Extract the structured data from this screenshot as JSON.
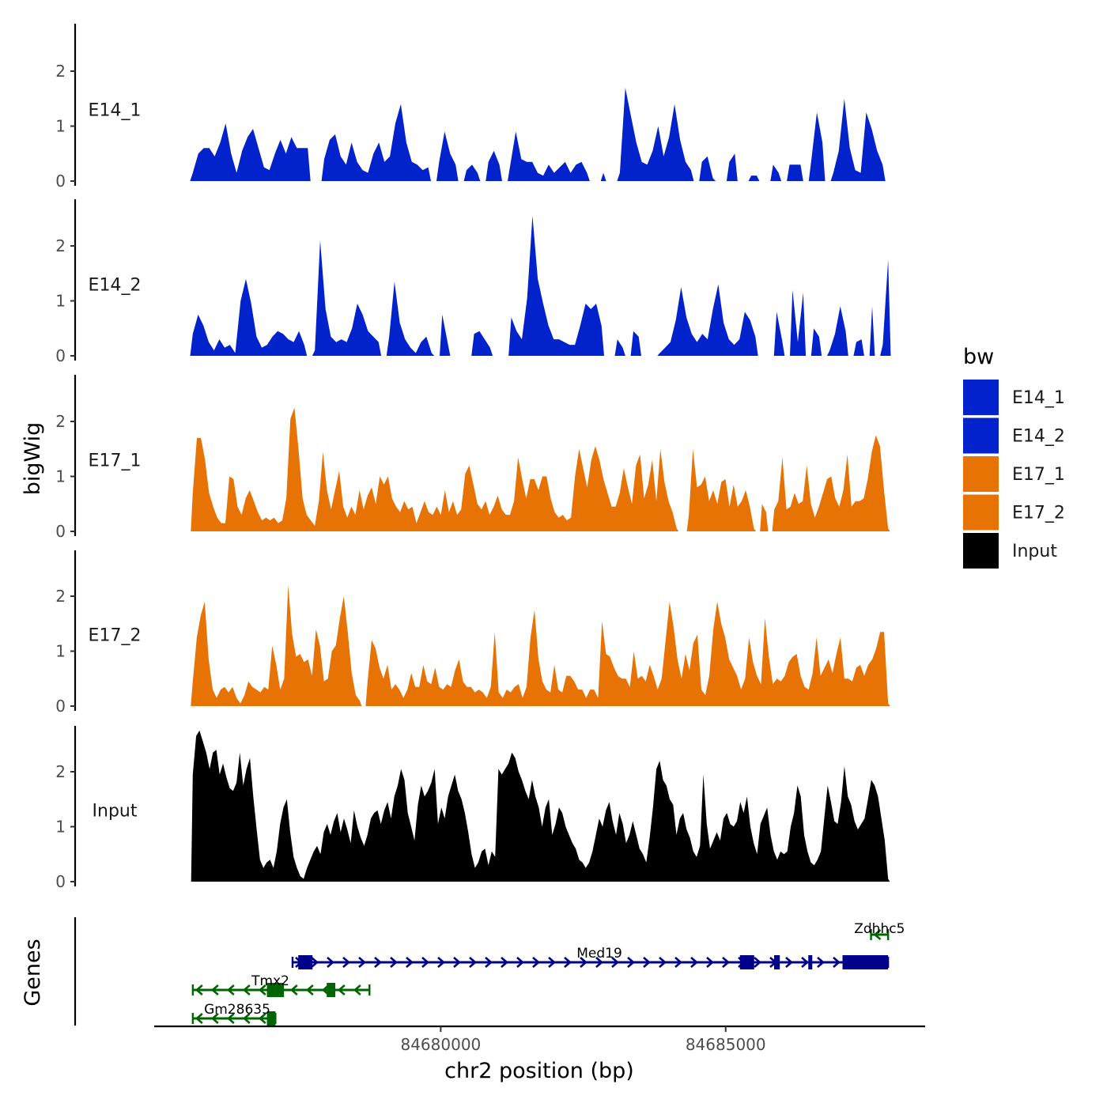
{
  "chart_data": {
    "type": "area",
    "chromosome": "chr2",
    "xlim": [
      84675000,
      84688500
    ],
    "x_range_data": [
      84675650,
      84687850
    ],
    "xticks": [
      84680000,
      84685000
    ],
    "xtick_labels": [
      "84680000",
      "84685000"
    ],
    "xlabel": "chr2 position (bp)",
    "ylabel": "bigWig",
    "ylim": [
      0,
      2.8
    ],
    "yticks": [
      0,
      1,
      2
    ],
    "ytick_labels": [
      "0",
      "1",
      "2"
    ],
    "genes_axis_label": "Genes",
    "legend": {
      "title": "bw",
      "entries": [
        {
          "label": "E14_1",
          "color": "#0222CC"
        },
        {
          "label": "E14_2",
          "color": "#0222CC"
        },
        {
          "label": "E17_1",
          "color": "#E87305"
        },
        {
          "label": "E17_2",
          "color": "#E87305"
        },
        {
          "label": "Input",
          "color": "#000000"
        }
      ]
    },
    "series": [
      {
        "name": "E14_1",
        "color": "#0222CC",
        "values": [
          0.15,
          0.5,
          0.6,
          0.6,
          0.45,
          0.7,
          1.05,
          0.5,
          0.15,
          0.55,
          0.8,
          0.95,
          0.6,
          0.25,
          0.2,
          0.5,
          0.75,
          0.5,
          0.8,
          0.6,
          0.6,
          0.6,
          0,
          0,
          0.4,
          0.75,
          0.85,
          0.45,
          0.3,
          0.7,
          0.35,
          0.2,
          0.15,
          0.5,
          0.7,
          0.35,
          0.45,
          1.05,
          1.4,
          0.7,
          0.35,
          0.3,
          0.2,
          0.25,
          0,
          0.35,
          0.9,
          0.5,
          0.3,
          0,
          0.2,
          0.3,
          0.15,
          0,
          0.35,
          0.55,
          0.3,
          0,
          0.3,
          0.9,
          0.4,
          0.35,
          0.35,
          0.15,
          0.1,
          0.3,
          0.15,
          0.25,
          0.35,
          0.15,
          0.3,
          0.35,
          0.15,
          0,
          0,
          0.15,
          0,
          0,
          0.15,
          1.7,
          1.2,
          0.7,
          0.35,
          0.3,
          0.55,
          1.0,
          0.45,
          0.8,
          1.4,
          0.75,
          0.35,
          0.2,
          0,
          0.35,
          0.45,
          0.05,
          0,
          0,
          0.35,
          0.5,
          0,
          0,
          0.1,
          0.1,
          0,
          0,
          0.3,
          0.15,
          0,
          0.3,
          0.3,
          0.3,
          0,
          0.4,
          1.25,
          0.7,
          0,
          0.15,
          0.55,
          1.5,
          0.6,
          0.2,
          0.15,
          1.25,
          0.95,
          0.55,
          0.3,
          0
        ]
      },
      {
        "name": "E14_2",
        "color": "#0222CC",
        "values": [
          0.4,
          0.75,
          0.55,
          0.25,
          0.1,
          0.3,
          0.15,
          0.2,
          0.05,
          1.0,
          1.4,
          0.95,
          0.35,
          0.15,
          0.2,
          0.35,
          0.45,
          0.4,
          0.3,
          0.25,
          0.45,
          0.2,
          0,
          0.1,
          2.1,
          0.85,
          0.35,
          0.25,
          0.3,
          0.25,
          0.5,
          0.95,
          0.75,
          0.45,
          0.35,
          0.25,
          0,
          0.35,
          1.35,
          0.6,
          0.3,
          0.15,
          0.05,
          0.25,
          0.35,
          0.05,
          0,
          0.75,
          0.25,
          0,
          0,
          0,
          0,
          0.4,
          0.45,
          0.3,
          0.15,
          0,
          0,
          0,
          0.7,
          0.45,
          0.3,
          1.05,
          2.55,
          1.4,
          0.95,
          0.55,
          0.3,
          0.3,
          0.25,
          0.2,
          0.2,
          0.55,
          0.95,
          0.85,
          0.95,
          0.55,
          0,
          0,
          0.3,
          0.15,
          0,
          0.45,
          0.35,
          0,
          0,
          0,
          0.05,
          0.15,
          0.25,
          0.65,
          1.25,
          0.7,
          0.4,
          0.25,
          0.4,
          0.3,
          0.85,
          1.3,
          0.6,
          0.3,
          0.2,
          0.3,
          0.8,
          0.65,
          0.35,
          0,
          0,
          0,
          0.8,
          0.3,
          0,
          1.2,
          0.25,
          1.15,
          0,
          0.5,
          0.35,
          0,
          0.1,
          0.4,
          0.9,
          0.45,
          0,
          0.25,
          0.3,
          0,
          0.9,
          0,
          0.2,
          1.75
        ]
      },
      {
        "name": "E17_1",
        "color": "#E87305",
        "values": [
          0.7,
          1.7,
          1.7,
          1.3,
          0.7,
          0.45,
          0.25,
          0.15,
          0.15,
          1.0,
          0.95,
          0.45,
          0.3,
          0.6,
          0.75,
          0.55,
          0.35,
          0.2,
          0.25,
          0.2,
          0.25,
          0.15,
          0.2,
          0.6,
          2.05,
          2.25,
          1.5,
          0.6,
          0.3,
          0.2,
          0.1,
          0.55,
          1.45,
          0.75,
          0.4,
          0.75,
          1.1,
          0.45,
          0.25,
          0.45,
          0.3,
          0.75,
          0.4,
          0.65,
          0.8,
          0.5,
          1.0,
          0.85,
          1.0,
          0.6,
          0.45,
          0.35,
          0.55,
          0.4,
          0.45,
          0.15,
          0.35,
          0.55,
          0.35,
          0.3,
          0.45,
          0.3,
          0.75,
          0.35,
          0.55,
          0.3,
          0.4,
          1.05,
          1.2,
          0.85,
          0.5,
          0.4,
          0.55,
          0.3,
          0.45,
          0.65,
          0.4,
          0.3,
          0.3,
          0.55,
          1.35,
          0.95,
          0.6,
          0.95,
          0.95,
          0.75,
          1.0,
          1.0,
          0.6,
          0.35,
          0.25,
          0.3,
          0.2,
          0.25,
          1.0,
          1.5,
          1.15,
          0.8,
          1.3,
          1.55,
          1.3,
          0.95,
          0.7,
          0.45,
          0.45,
          0.7,
          1.15,
          0.8,
          0.5,
          1.2,
          1.4,
          0.6,
          0.85,
          1.3,
          0.55,
          1.5,
          0.9,
          0.55,
          0.35,
          0.05,
          0,
          0,
          0.3,
          1.5,
          0.8,
          0.85,
          1.0,
          0.55,
          0.75,
          0.5,
          0.9,
          0.95,
          0.45,
          0.85,
          0.45,
          0.55,
          0.75,
          0.45,
          0.05,
          0,
          0.5,
          0.35,
          0,
          0.4,
          0.55,
          1.35,
          0.4,
          0.45,
          0.7,
          0.5,
          0.55,
          1.2,
          0.5,
          0.25,
          0.45,
          0.7,
          0.95,
          1.0,
          0.6,
          0.45,
          0.75,
          1.4,
          0.45,
          0.55,
          0.55,
          0.6,
          0.95,
          1.45,
          1.75,
          1.55,
          0.75,
          0.05
        ]
      },
      {
        "name": "E17_2",
        "color": "#E87305",
        "values": [
          0.45,
          1.25,
          1.65,
          1.9,
          0.85,
          0.3,
          0.15,
          0.3,
          0.35,
          0.25,
          0.35,
          0.15,
          0.05,
          0.2,
          0.45,
          0.35,
          0.3,
          0.25,
          0.35,
          0.3,
          1.1,
          0.75,
          0.3,
          0.5,
          2.2,
          1.3,
          0.9,
          0.95,
          0.8,
          0.85,
          0.55,
          1.4,
          1.1,
          0.45,
          0.5,
          1.0,
          1.1,
          1.6,
          2.0,
          1.35,
          0.6,
          0.2,
          0.1,
          0,
          0.45,
          1.2,
          1.05,
          0.7,
          0.5,
          0.75,
          0.3,
          0.4,
          0.3,
          0.15,
          0.3,
          0.6,
          0.35,
          0.35,
          0.75,
          0.45,
          0.4,
          0.7,
          0.35,
          0.3,
          0.4,
          0.35,
          0.65,
          0.85,
          0.45,
          0.35,
          0.35,
          0.25,
          0.3,
          0.25,
          0.15,
          0.35,
          1.35,
          0.25,
          0.15,
          0.3,
          0.25,
          0.35,
          0.4,
          0.15,
          0.35,
          1.25,
          1.75,
          0.85,
          0.45,
          0.3,
          0.25,
          0.75,
          0.3,
          0.25,
          0.55,
          0.55,
          0.45,
          0.3,
          0.3,
          0.15,
          0.3,
          0.3,
          0.15,
          1.55,
          0.95,
          0.9,
          0.7,
          0.55,
          0.5,
          0.5,
          0.35,
          1.0,
          0.5,
          0.55,
          0.45,
          0.75,
          0.55,
          0.3,
          0.5,
          1.2,
          1.9,
          1.45,
          0.85,
          0.5,
          0.95,
          0.65,
          1.15,
          1.3,
          0.3,
          0.2,
          0.55,
          1.4,
          1.9,
          1.5,
          1.25,
          0.85,
          0.7,
          0.55,
          0.3,
          0.5,
          1.25,
          0.8,
          0.55,
          0.4,
          1.6,
          0.9,
          0.4,
          0.5,
          0.45,
          0.55,
          0.8,
          0.9,
          0.95,
          0.55,
          0.35,
          0.3,
          0.6,
          1.25,
          0.55,
          0.7,
          0.85,
          0.6,
          0.95,
          1.25,
          0.5,
          0.5,
          0.45,
          0.7,
          0.75,
          0.55,
          0.75,
          0.85,
          1.05,
          1.35,
          1.35,
          0.05
        ]
      },
      {
        "name": "Input",
        "color": "#000000",
        "values": [
          1.95,
          2.65,
          2.75,
          2.55,
          2.35,
          2.05,
          2.35,
          2.4,
          1.95,
          2.15,
          1.9,
          1.7,
          1.65,
          1.8,
          2.35,
          1.75,
          2.05,
          2.25,
          1.55,
          0.95,
          0.4,
          0.25,
          0.35,
          0.4,
          0.25,
          0.55,
          1.05,
          1.35,
          1.5,
          0.9,
          0.45,
          0.25,
          0.1,
          0.05,
          0.25,
          0.4,
          0.55,
          0.65,
          0.5,
          0.9,
          1.05,
          0.85,
          1.1,
          1.25,
          0.9,
          1.15,
          0.95,
          0.7,
          1.3,
          1.0,
          0.8,
          0.65,
          0.85,
          1.15,
          1.25,
          1.3,
          1.05,
          1.3,
          1.45,
          1.15,
          1.55,
          1.75,
          2.05,
          1.85,
          1.25,
          1.0,
          0.75,
          1.4,
          1.75,
          1.55,
          1.65,
          1.8,
          2.05,
          1.05,
          1.35,
          1.15,
          1.55,
          1.75,
          1.95,
          1.65,
          1.5,
          1.25,
          0.9,
          0.5,
          0.25,
          0.35,
          0.55,
          0.6,
          0.3,
          0.55,
          0.45,
          2.05,
          1.95,
          2.05,
          2.15,
          2.35,
          2.25,
          2.0,
          1.85,
          1.65,
          1.5,
          1.85,
          1.55,
          1.35,
          1.0,
          1.35,
          1.5,
          0.85,
          1.05,
          1.35,
          1.25,
          1.0,
          0.85,
          0.7,
          0.6,
          0.4,
          0.35,
          0.25,
          0.35,
          0.55,
          0.85,
          1.15,
          1.0,
          1.3,
          1.45,
          1.1,
          0.85,
          1.25,
          1.05,
          0.7,
          0.85,
          1.1,
          0.85,
          0.6,
          0.5,
          0.35,
          0.8,
          1.35,
          2.05,
          2.2,
          1.85,
          1.75,
          1.5,
          1.4,
          0.85,
          1.15,
          1.25,
          0.95,
          0.8,
          0.55,
          0.45,
          0.65,
          1.95,
          1.05,
          0.6,
          0.75,
          0.9,
          0.75,
          1.15,
          1.25,
          1.05,
          1.0,
          1.1,
          1.45,
          1.25,
          1.55,
          1.0,
          0.7,
          0.5,
          1.05,
          1.2,
          1.35,
          0.85,
          0.55,
          0.4,
          0.55,
          0.5,
          0.55,
          1.0,
          1.25,
          1.75,
          1.55,
          0.85,
          0.55,
          0.35,
          0.3,
          0.4,
          0.55,
          1.15,
          1.75,
          1.45,
          1.1,
          1.05,
          1.45,
          2.1,
          1.55,
          1.4,
          1.1,
          0.95,
          1.05,
          1.15,
          1.5,
          1.85,
          1.75,
          1.55,
          1.15,
          0.75,
          0.05
        ]
      }
    ],
    "genes": [
      {
        "name": "Med19",
        "strand": "+",
        "start": 84677400,
        "end": 84687850,
        "color": "#00008B",
        "row": 0,
        "exons": [
          [
            84677500,
            84677750
          ],
          [
            84685250,
            84685500
          ],
          [
            84685850,
            84685950
          ],
          [
            84686450,
            84686520
          ],
          [
            84687050,
            84687850
          ]
        ]
      },
      {
        "name": "Zdhhc5",
        "strand": "-",
        "start": 84687550,
        "end": 84687850,
        "color": "#006400",
        "row": -1,
        "exons": []
      },
      {
        "name": "Tmx2",
        "strand": "-",
        "start": 84675650,
        "end": 84678750,
        "color": "#006400",
        "row": 1,
        "exons": [
          [
            84676950,
            84677250
          ],
          [
            84678000,
            84678150
          ]
        ]
      },
      {
        "name": "Gm28635",
        "strand": "-",
        "start": 84675650,
        "end": 84677100,
        "color": "#006400",
        "row": 2,
        "exons": [
          [
            84676950,
            84677100
          ]
        ]
      }
    ]
  }
}
